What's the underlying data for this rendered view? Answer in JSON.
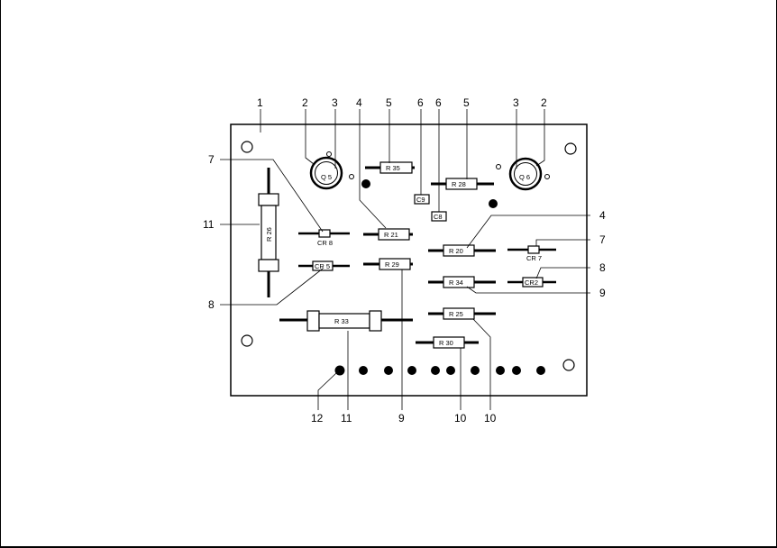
{
  "board": {
    "components": {
      "r35": "R 35",
      "r28": "R 28",
      "r21": "R 21",
      "r29": "R 29",
      "r20": "R 20",
      "r34": "R 34",
      "r25": "R 25",
      "r30": "R 30",
      "r33": "R 33",
      "r26": "R 26",
      "q5": "Q 5",
      "q6": "Q 6",
      "c9": "C9",
      "c8": "C8",
      "cr8": "CR 8",
      "cr5": "CR 5",
      "cr7": "CR 7",
      "cr2": "CR2"
    },
    "callouts": {
      "c1": "1",
      "c2a": "2",
      "c3a": "3",
      "c4a": "4",
      "c5a": "5",
      "c6a": "6",
      "c6b": "6",
      "c5b": "5",
      "c3b": "3",
      "c2b": "2",
      "c7a": "7",
      "c11a": "11",
      "c8a": "8",
      "c4b": "4",
      "c7b": "7",
      "c8b": "8",
      "c9a": "9",
      "c12": "12",
      "c11b": "11",
      "c9b": "9",
      "c10a": "10",
      "c10b": "10"
    }
  }
}
